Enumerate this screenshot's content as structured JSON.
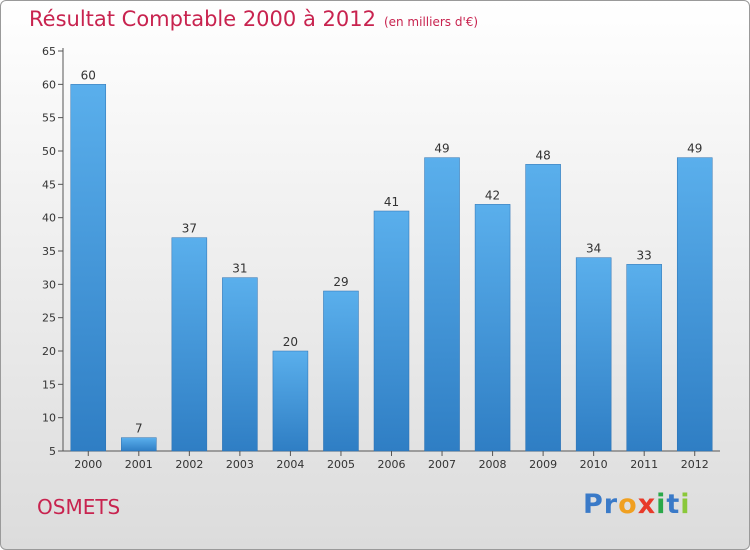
{
  "chart_data": {
    "type": "bar",
    "title": "Résultat Comptable 2000 à 2012",
    "title_unit": "(en milliers d'€)",
    "categories": [
      "2000",
      "2001",
      "2002",
      "2003",
      "2004",
      "2005",
      "2006",
      "2007",
      "2008",
      "2009",
      "2010",
      "2011",
      "2012"
    ],
    "values": [
      60,
      7,
      37,
      31,
      20,
      29,
      41,
      49,
      42,
      48,
      34,
      33,
      49
    ],
    "yticks": [
      5,
      10,
      15,
      20,
      25,
      30,
      35,
      40,
      45,
      50,
      55,
      60,
      65
    ],
    "ylim": [
      5,
      65
    ],
    "xlabel": "",
    "ylabel": "",
    "grid": false,
    "legend": false,
    "bar_color": "#4a9ee0"
  },
  "commune": "OSMETS",
  "logo": {
    "letters": [
      {
        "char": "P",
        "color": "#3a7ac8"
      },
      {
        "char": "r",
        "color": "#3a7ac8"
      },
      {
        "char": "o",
        "color": "#f0a020"
      },
      {
        "char": "x",
        "color": "#e83a2a"
      },
      {
        "char": "i",
        "color": "#2aa84a"
      },
      {
        "char": "t",
        "color": "#3a7ac8"
      },
      {
        "char": "i",
        "color": "#8ac83a"
      }
    ]
  },
  "colors": {
    "title": "#c8234f",
    "axis": "#555555"
  }
}
